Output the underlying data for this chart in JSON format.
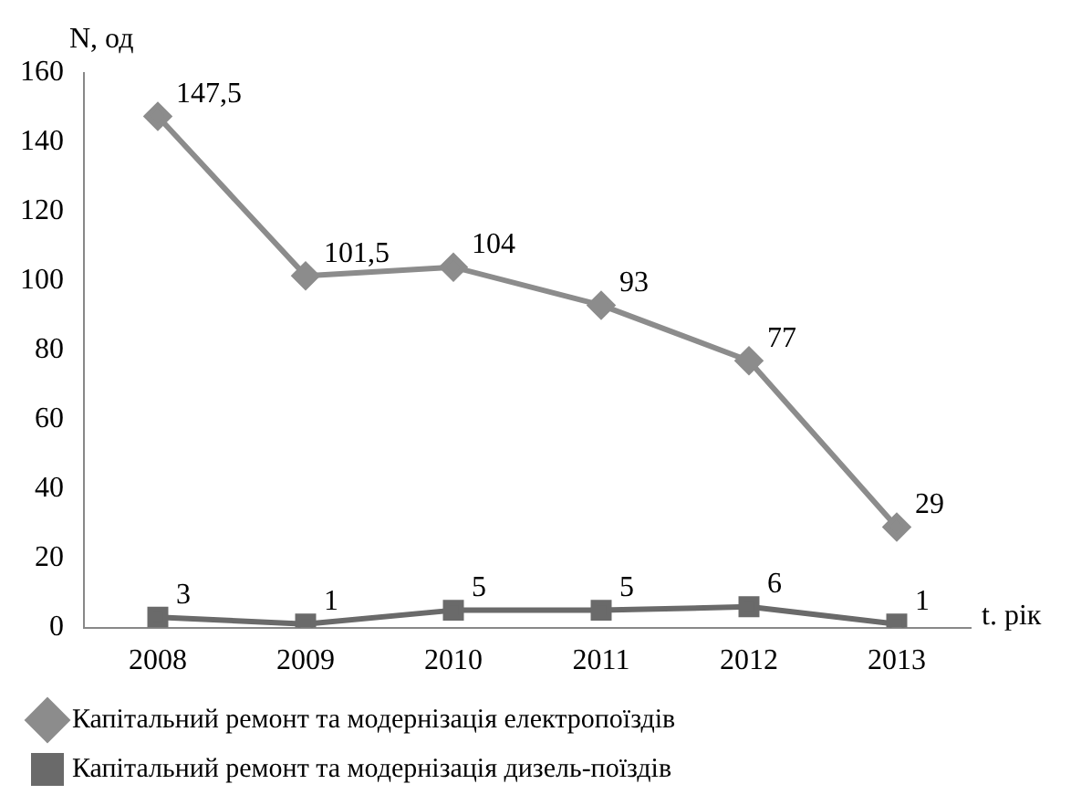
{
  "chart_data": {
    "type": "line",
    "ylabel": "N, од",
    "xlabel": "t. рік",
    "categories": [
      "2008",
      "2009",
      "2010",
      "2011",
      "2012",
      "2013"
    ],
    "series": [
      {
        "name": "Капітальний ремонт та модернізація електропоїздів",
        "color": "#8c8c8c",
        "marker": "diamond",
        "values": [
          147.5,
          101.5,
          104,
          93,
          77,
          29
        ],
        "value_labels": [
          "147,5",
          "101,5",
          "104",
          "93",
          "77",
          "29"
        ]
      },
      {
        "name": "Капітальний ремонт та модернізація дизель-поїздів",
        "color": "#6a6a6a",
        "marker": "square",
        "values": [
          3,
          1,
          5,
          5,
          6,
          1
        ],
        "value_labels": [
          "3",
          "1",
          "5",
          "5",
          "6",
          "1"
        ]
      }
    ],
    "ylim": [
      0,
      160
    ],
    "yticks": [
      0,
      20,
      40,
      60,
      80,
      100,
      120,
      140,
      160
    ],
    "grid": false,
    "legend": "bottom"
  }
}
